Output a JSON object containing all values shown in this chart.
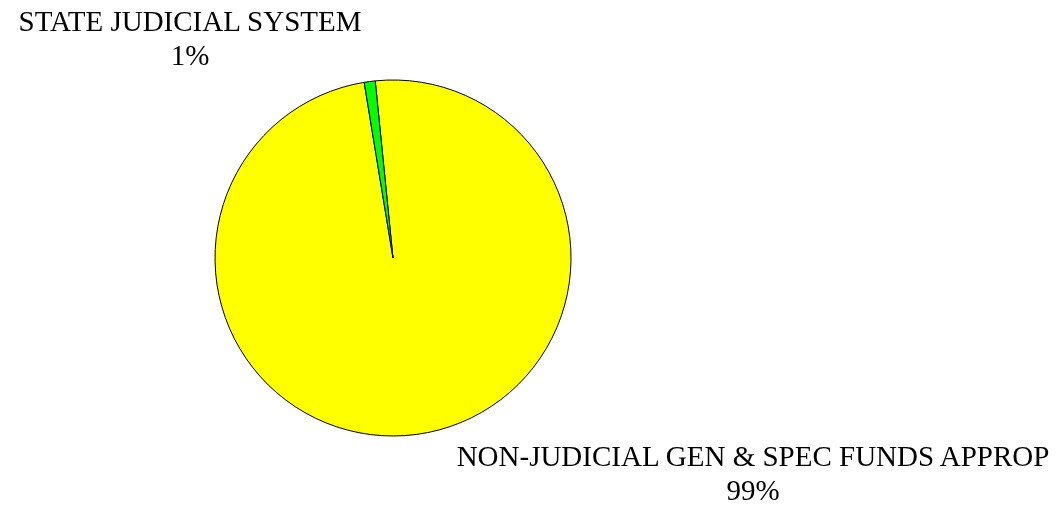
{
  "chart_data": {
    "type": "pie",
    "categories": [
      "NON-JUDICIAL GEN & SPEC FUNDS APPROP",
      "STATE JUDICIAL SYSTEM"
    ],
    "values": [
      99,
      1
    ],
    "colors": [
      "#ffff00",
      "#00ff00"
    ],
    "value_labels": [
      "99%",
      "1%"
    ]
  }
}
